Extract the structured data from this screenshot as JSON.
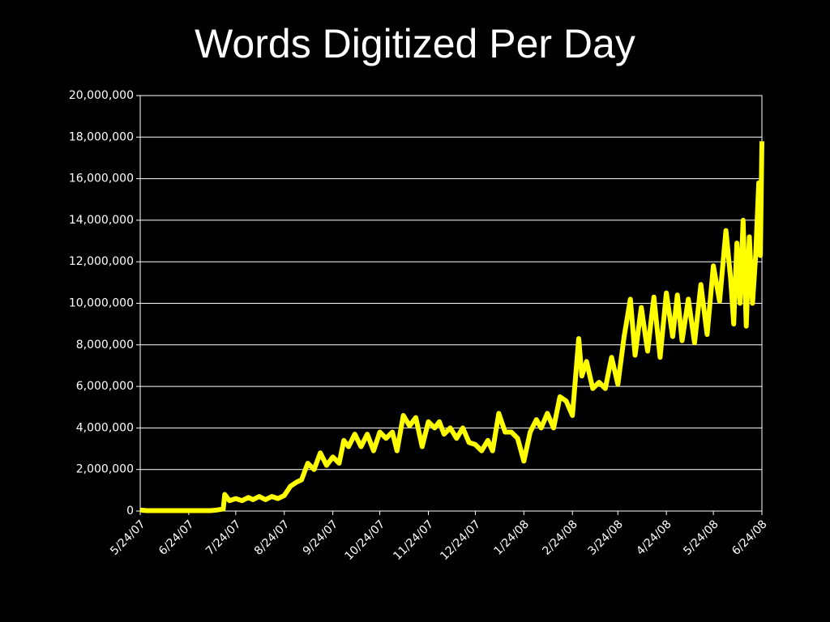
{
  "chart_data": {
    "type": "line",
    "title": "Words Digitized Per Day",
    "x": [
      "5/24/07",
      "5/28/07",
      "6/1/07",
      "6/8/07",
      "6/16/07",
      "6/24/07",
      "7/1/07",
      "7/8/07",
      "7/12/07",
      "7/16/07",
      "7/17/07",
      "7/20/07",
      "7/24/07",
      "7/28/07",
      "8/1/07",
      "8/4/07",
      "8/8/07",
      "8/12/07",
      "8/16/07",
      "8/20/07",
      "8/24/07",
      "8/28/07",
      "9/1/07",
      "9/4/07",
      "9/8/07",
      "9/12/07",
      "9/16/07",
      "9/20/07",
      "9/24/07",
      "9/28/07",
      "10/1/07",
      "10/4/07",
      "10/8/07",
      "10/12/07",
      "10/16/07",
      "10/20/07",
      "10/24/07",
      "10/28/07",
      "11/1/07",
      "11/4/07",
      "11/8/07",
      "11/12/07",
      "11/16/07",
      "11/20/07",
      "11/24/07",
      "11/28/07",
      "12/1/07",
      "12/4/07",
      "12/8/07",
      "12/12/07",
      "12/16/07",
      "12/20/07",
      "12/24/07",
      "12/28/07",
      "1/1/08",
      "1/4/08",
      "1/8/08",
      "1/12/08",
      "1/16/08",
      "1/20/08",
      "1/24/08",
      "1/28/08",
      "2/1/08",
      "2/4/08",
      "2/8/08",
      "2/12/08",
      "2/16/08",
      "2/20/08",
      "2/24/08",
      "2/28/08",
      "3/1/08",
      "3/4/08",
      "3/8/08",
      "3/12/08",
      "3/16/08",
      "3/20/08",
      "3/24/08",
      "3/28/08",
      "4/1/08",
      "4/4/08",
      "4/8/08",
      "4/12/08",
      "4/16/08",
      "4/20/08",
      "4/24/08",
      "4/28/08",
      "5/1/08",
      "5/4/08",
      "5/8/08",
      "5/12/08",
      "5/16/08",
      "5/20/08",
      "5/24/08",
      "5/28/08",
      "6/1/08",
      "6/4/08",
      "6/6/08",
      "6/8/08",
      "6/10/08",
      "6/12/08",
      "6/14/08",
      "6/16/08",
      "6/18/08",
      "6/20/08",
      "6/22/08",
      "6/23/08",
      "6/24/08"
    ],
    "series": [
      {
        "color": "#ffff00",
        "values": [
          50000,
          20000,
          20000,
          20000,
          20000,
          20000,
          20000,
          20000,
          50000,
          100000,
          800000,
          500000,
          600000,
          500000,
          650000,
          550000,
          700000,
          550000,
          700000,
          600000,
          750000,
          1200000,
          1400000,
          1500000,
          2300000,
          2000000,
          2800000,
          2200000,
          2600000,
          2300000,
          3400000,
          3100000,
          3700000,
          3100000,
          3700000,
          2900000,
          3800000,
          3500000,
          3800000,
          2900000,
          4600000,
          4100000,
          4500000,
          3100000,
          4300000,
          4000000,
          4300000,
          3700000,
          4000000,
          3500000,
          4000000,
          3300000,
          3200000,
          2900000,
          3400000,
          2900000,
          4700000,
          3800000,
          3800000,
          3500000,
          2400000,
          3800000,
          4400000,
          4000000,
          4700000,
          4000000,
          5500000,
          5300000,
          4600000,
          8300000,
          6500000,
          7200000,
          5900000,
          6200000,
          5900000,
          7400000,
          6100000,
          8400000,
          10200000,
          7500000,
          9800000,
          7700000,
          10300000,
          7400000,
          10500000,
          8400000,
          10400000,
          8200000,
          10200000,
          8100000,
          10900000,
          8500000,
          11800000,
          10100000,
          13500000,
          11200000,
          9000000,
          12900000,
          10000000,
          14000000,
          8900000,
          13200000,
          10000000,
          12300000,
          15800000,
          12300000,
          17800000
        ]
      }
    ],
    "xlim": [
      "5/24/07",
      "6/24/08"
    ],
    "xticks": [
      "5/24/07",
      "6/24/07",
      "7/24/07",
      "8/24/07",
      "9/24/07",
      "10/24/07",
      "11/24/07",
      "12/24/07",
      "1/24/08",
      "2/24/08",
      "3/24/08",
      "4/24/08",
      "5/24/08",
      "6/24/08"
    ],
    "ylim": [
      0,
      20000000
    ],
    "yticks": [
      0,
      {
        "value": 2000000,
        "label": "2,000,000"
      },
      {
        "value": 4000000,
        "label": "4,000,000"
      },
      {
        "value": 6000000,
        "label": "6,000,000"
      },
      {
        "value": 8000000,
        "label": "8,000,000"
      },
      {
        "value": 10000000,
        "label": "10,000,000"
      },
      {
        "value": 12000000,
        "label": "12,000,000"
      },
      {
        "value": 14000000,
        "label": "14,000,000"
      },
      {
        "value": 16000000,
        "label": "16,000,000"
      },
      {
        "value": 18000000,
        "label": "18,000,000"
      },
      {
        "value": 20000000,
        "label": "20,000,000"
      }
    ],
    "grid": true
  }
}
